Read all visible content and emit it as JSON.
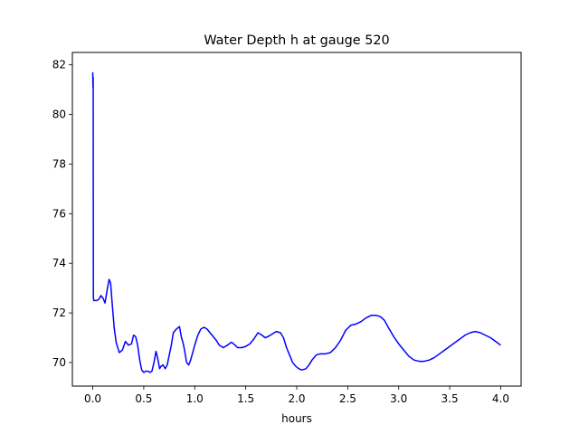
{
  "chart_data": {
    "type": "line",
    "title": "Water Depth h at gauge 520",
    "xlabel": "hours",
    "ylabel": "",
    "xlim": [
      -0.2,
      4.2
    ],
    "ylim": [
      69.05,
      82.5
    ],
    "xticks": [
      0.0,
      0.5,
      1.0,
      1.5,
      2.0,
      2.5,
      3.0,
      3.5,
      4.0
    ],
    "xtick_labels": [
      "0.0",
      "0.5",
      "1.0",
      "1.5",
      "2.0",
      "2.5",
      "3.0",
      "3.5",
      "4.0"
    ],
    "yticks": [
      70,
      72,
      74,
      76,
      78,
      80,
      82
    ],
    "ytick_labels": [
      "70",
      "72",
      "74",
      "76",
      "78",
      "80",
      "82"
    ],
    "grid": false,
    "series": [
      {
        "color": "#0000ff",
        "x": [
          0.0,
          0.002,
          0.004,
          0.006,
          0.01,
          0.02,
          0.04,
          0.06,
          0.08,
          0.1,
          0.12,
          0.14,
          0.16,
          0.175,
          0.19,
          0.21,
          0.23,
          0.26,
          0.29,
          0.32,
          0.35,
          0.38,
          0.4,
          0.42,
          0.44,
          0.46,
          0.48,
          0.5,
          0.52,
          0.54,
          0.56,
          0.58,
          0.6,
          0.62,
          0.64,
          0.655,
          0.67,
          0.69,
          0.71,
          0.73,
          0.75,
          0.77,
          0.79,
          0.82,
          0.85,
          0.87,
          0.885,
          0.9,
          0.92,
          0.94,
          0.96,
          0.98,
          1.0,
          1.03,
          1.06,
          1.09,
          1.12,
          1.15,
          1.18,
          1.21,
          1.24,
          1.28,
          1.32,
          1.36,
          1.39,
          1.42,
          1.46,
          1.5,
          1.54,
          1.58,
          1.62,
          1.66,
          1.69,
          1.72,
          1.76,
          1.8,
          1.84,
          1.87,
          1.9,
          1.93,
          1.96,
          1.99,
          2.02,
          2.05,
          2.09,
          2.12,
          2.15,
          2.19,
          2.23,
          2.28,
          2.33,
          2.38,
          2.43,
          2.48,
          2.53,
          2.58,
          2.63,
          2.68,
          2.73,
          2.78,
          2.82,
          2.86,
          2.9,
          2.95,
          3.0,
          3.05,
          3.1,
          3.15,
          3.2,
          3.25,
          3.3,
          3.35,
          3.4,
          3.45,
          3.5,
          3.55,
          3.6,
          3.65,
          3.7,
          3.75,
          3.8,
          3.85,
          3.9,
          3.95,
          4.0
        ],
        "y": [
          81.7,
          81.1,
          81.5,
          72.6,
          72.5,
          72.5,
          72.5,
          72.55,
          72.7,
          72.6,
          72.4,
          72.9,
          73.35,
          73.2,
          72.4,
          71.4,
          70.8,
          70.4,
          70.5,
          70.85,
          70.7,
          70.75,
          71.1,
          71.05,
          70.7,
          70.1,
          69.7,
          69.6,
          69.65,
          69.65,
          69.6,
          69.65,
          70.0,
          70.45,
          70.1,
          69.75,
          69.85,
          69.9,
          69.75,
          69.9,
          70.3,
          70.7,
          71.2,
          71.35,
          71.45,
          71.0,
          70.8,
          70.5,
          70.0,
          69.9,
          70.1,
          70.4,
          70.7,
          71.1,
          71.35,
          71.42,
          71.35,
          71.2,
          71.05,
          70.9,
          70.7,
          70.6,
          70.7,
          70.82,
          70.72,
          70.6,
          70.6,
          70.65,
          70.75,
          70.95,
          71.2,
          71.1,
          71.0,
          71.05,
          71.15,
          71.25,
          71.2,
          71.0,
          70.6,
          70.3,
          70.0,
          69.85,
          69.75,
          69.7,
          69.75,
          69.9,
          70.1,
          70.3,
          70.35,
          70.35,
          70.4,
          70.6,
          70.9,
          71.3,
          71.5,
          71.55,
          71.65,
          71.8,
          71.9,
          71.9,
          71.85,
          71.7,
          71.4,
          71.05,
          70.75,
          70.5,
          70.25,
          70.1,
          70.05,
          70.05,
          70.1,
          70.2,
          70.35,
          70.5,
          70.65,
          70.8,
          70.95,
          71.1,
          71.2,
          71.25,
          71.2,
          71.1,
          71.0,
          70.85,
          70.7
        ]
      }
    ]
  }
}
